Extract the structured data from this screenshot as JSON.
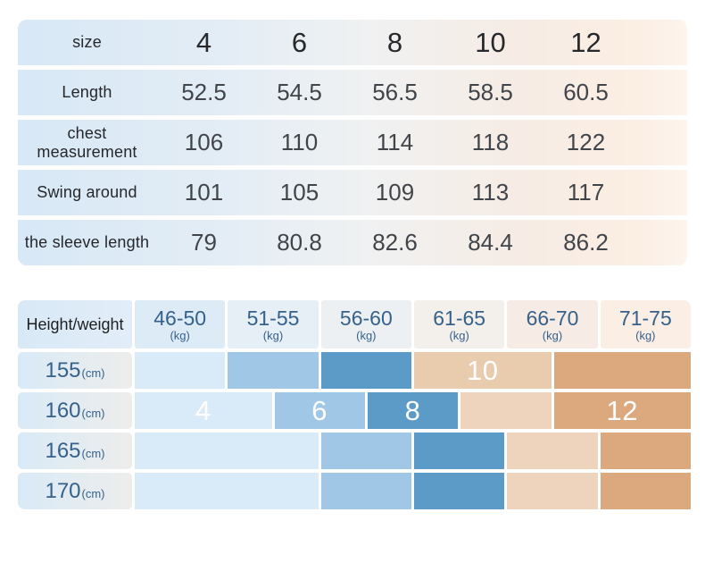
{
  "colors": {
    "blue1": "#d9ebf9",
    "blue2": "#a0c7e6",
    "blue3": "#5c9bc8",
    "peachA": "#e9ccae",
    "peachB": "#eed4bd",
    "orange": "#dcA87e",
    "blueText": "#35618b",
    "head0": "#d8e9f6",
    "head1": "#ddebf7",
    "head2": "#e6eef6",
    "head3": "#edf0f2",
    "head4": "#f3efeb",
    "head5": "#f7ece5",
    "head6": "#fbeee4",
    "rowHeadL": "#d9eaf7",
    "rowHeadR": "#ededeb"
  },
  "size_table": {
    "header_row": {
      "label": "size",
      "values": [
        "4",
        "6",
        "8",
        "10",
        "12"
      ]
    },
    "rows": [
      {
        "label": "Length",
        "values": [
          "52.5",
          "54.5",
          "56.5",
          "58.5",
          "60.5"
        ]
      },
      {
        "label": "chest measurement",
        "values": [
          "106",
          "110",
          "114",
          "118",
          "122"
        ]
      },
      {
        "label": "Swing around",
        "values": [
          "101",
          "105",
          "109",
          "113",
          "117"
        ]
      },
      {
        "label": "the sleeve length",
        "values": [
          "79",
          "80.8",
          "82.6",
          "84.4",
          "86.2"
        ]
      }
    ]
  },
  "fit_chart": {
    "corner_label": "Height/weight",
    "unit_weight": "(kg)",
    "unit_height": "(cm)",
    "weight_ranges": [
      "46-50",
      "51-55",
      "56-60",
      "61-65",
      "66-70",
      "71-75"
    ],
    "rows": [
      {
        "height": "155",
        "cells": [
          {
            "label": "",
            "tone": "blue-light",
            "span_half_cols": 2
          },
          {
            "label": "",
            "tone": "blue-medium",
            "span_half_cols": 2
          },
          {
            "label": "",
            "tone": "blue-dark",
            "span_half_cols": 2
          },
          {
            "label": "10",
            "tone": "peach-labeled",
            "span_half_cols": 3
          },
          {
            "label": "",
            "tone": "orange",
            "span_half_cols": 3
          }
        ]
      },
      {
        "height": "160",
        "cells": [
          {
            "label": "4",
            "tone": "blue-light",
            "span_half_cols": 3
          },
          {
            "label": "6",
            "tone": "blue-medium",
            "span_half_cols": 2
          },
          {
            "label": "8",
            "tone": "blue-dark",
            "span_half_cols": 2
          },
          {
            "label": "",
            "tone": "peach",
            "span_half_cols": 2
          },
          {
            "label": "12",
            "tone": "orange",
            "span_half_cols": 3
          }
        ]
      },
      {
        "height": "165",
        "cells": [
          {
            "label": "",
            "tone": "blue-light",
            "span_half_cols": 4
          },
          {
            "label": "",
            "tone": "blue-medium",
            "span_half_cols": 2
          },
          {
            "label": "",
            "tone": "blue-dark",
            "span_half_cols": 2
          },
          {
            "label": "",
            "tone": "peach",
            "span_half_cols": 2
          },
          {
            "label": "",
            "tone": "orange",
            "span_half_cols": 2
          }
        ]
      },
      {
        "height": "170",
        "cells": [
          {
            "label": "",
            "tone": "blue-light",
            "span_half_cols": 4
          },
          {
            "label": "",
            "tone": "blue-medium",
            "span_half_cols": 2
          },
          {
            "label": "",
            "tone": "blue-dark",
            "span_half_cols": 2
          },
          {
            "label": "",
            "tone": "peach",
            "span_half_cols": 2
          },
          {
            "label": "",
            "tone": "orange",
            "span_half_cols": 2
          }
        ]
      }
    ]
  },
  "chart_data": [
    {
      "type": "table",
      "title": "garment size table",
      "columns": [
        "size",
        "4",
        "6",
        "8",
        "10",
        "12"
      ],
      "rows": [
        [
          "Length",
          52.5,
          54.5,
          56.5,
          58.5,
          60.5
        ],
        [
          "chest measurement",
          106,
          110,
          114,
          118,
          122
        ],
        [
          "Swing around",
          101,
          105,
          109,
          113,
          117
        ],
        [
          "the sleeve length",
          79,
          80.8,
          82.6,
          84.4,
          86.2
        ]
      ]
    },
    {
      "type": "heatmap",
      "title": "Height/weight size recommendation",
      "x_categories": [
        "46-50 (kg)",
        "51-55 (kg)",
        "56-60 (kg)",
        "61-65 (kg)",
        "66-70 (kg)",
        "71-75 (kg)"
      ],
      "y_categories": [
        "155 (cm)",
        "160 (cm)",
        "165 (cm)",
        "170 (cm)"
      ],
      "legend_labels_in_cells": [
        "4",
        "6",
        "8",
        "10",
        "12"
      ],
      "rows_as_half_column_spans": [
        {
          "y": "155",
          "cells": [
            [
              2,
              ""
            ],
            [
              2,
              ""
            ],
            [
              2,
              ""
            ],
            [
              3,
              "10"
            ],
            [
              3,
              ""
            ]
          ]
        },
        {
          "y": "160",
          "cells": [
            [
              3,
              "4"
            ],
            [
              2,
              "6"
            ],
            [
              2,
              "8"
            ],
            [
              2,
              ""
            ],
            [
              3,
              "12"
            ]
          ]
        },
        {
          "y": "165",
          "cells": [
            [
              4,
              ""
            ],
            [
              2,
              ""
            ],
            [
              2,
              ""
            ],
            [
              2,
              ""
            ],
            [
              2,
              ""
            ]
          ]
        },
        {
          "y": "170",
          "cells": [
            [
              4,
              ""
            ],
            [
              2,
              ""
            ],
            [
              2,
              ""
            ],
            [
              2,
              ""
            ],
            [
              2,
              ""
            ]
          ]
        }
      ]
    }
  ]
}
